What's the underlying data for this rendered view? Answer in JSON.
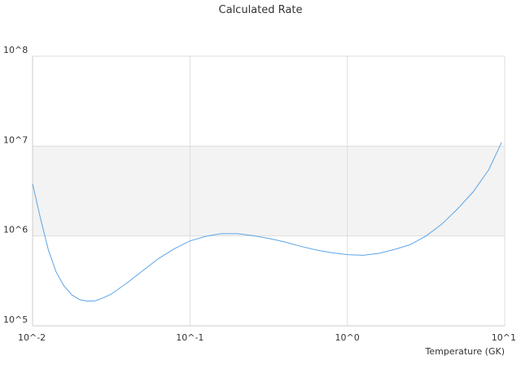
{
  "chart_data": {
    "type": "line",
    "title": "Calculated Rate",
    "xlabel": "Temperature (GK)",
    "ylabel": "",
    "x_scale": "log",
    "y_scale": "log",
    "xlim": [
      0.01,
      10
    ],
    "ylim": [
      100000,
      100000000
    ],
    "x_ticks": [
      "10^-2",
      "10^-1",
      "10^0",
      "10^1"
    ],
    "y_ticks": [
      "10^5",
      "10^6",
      "10^7",
      "10^8"
    ],
    "grid": true,
    "shaded_band": {
      "y_from": 1000000,
      "y_to": 10000000,
      "color": "#f3f3f3"
    },
    "colors": {
      "series": "#5aa5e6",
      "grid": "#dddddd",
      "axis": "#cccccc"
    },
    "series": [
      {
        "name": "",
        "x": [
          0.01,
          0.0112,
          0.0126,
          0.0141,
          0.0158,
          0.0178,
          0.02,
          0.0224,
          0.0251,
          0.0282,
          0.0316,
          0.0398,
          0.0501,
          0.0631,
          0.0794,
          0.1,
          0.126,
          0.158,
          0.2,
          0.251,
          0.316,
          0.398,
          0.501,
          0.631,
          0.794,
          1.0,
          1.26,
          1.58,
          2.0,
          2.51,
          3.16,
          3.98,
          5.01,
          6.31,
          7.94,
          9.55
        ],
        "y": [
          3800000,
          1600000,
          700000,
          400000,
          280000,
          220000,
          195000,
          188000,
          190000,
          205000,
          225000,
          300000,
          410000,
          560000,
          720000,
          880000,
          990000,
          1060000,
          1060000,
          1010000,
          940000,
          860000,
          770000,
          700000,
          650000,
          620000,
          610000,
          640000,
          710000,
          800000,
          1000000,
          1350000,
          2000000,
          3100000,
          5500000,
          11000000
        ]
      }
    ]
  }
}
